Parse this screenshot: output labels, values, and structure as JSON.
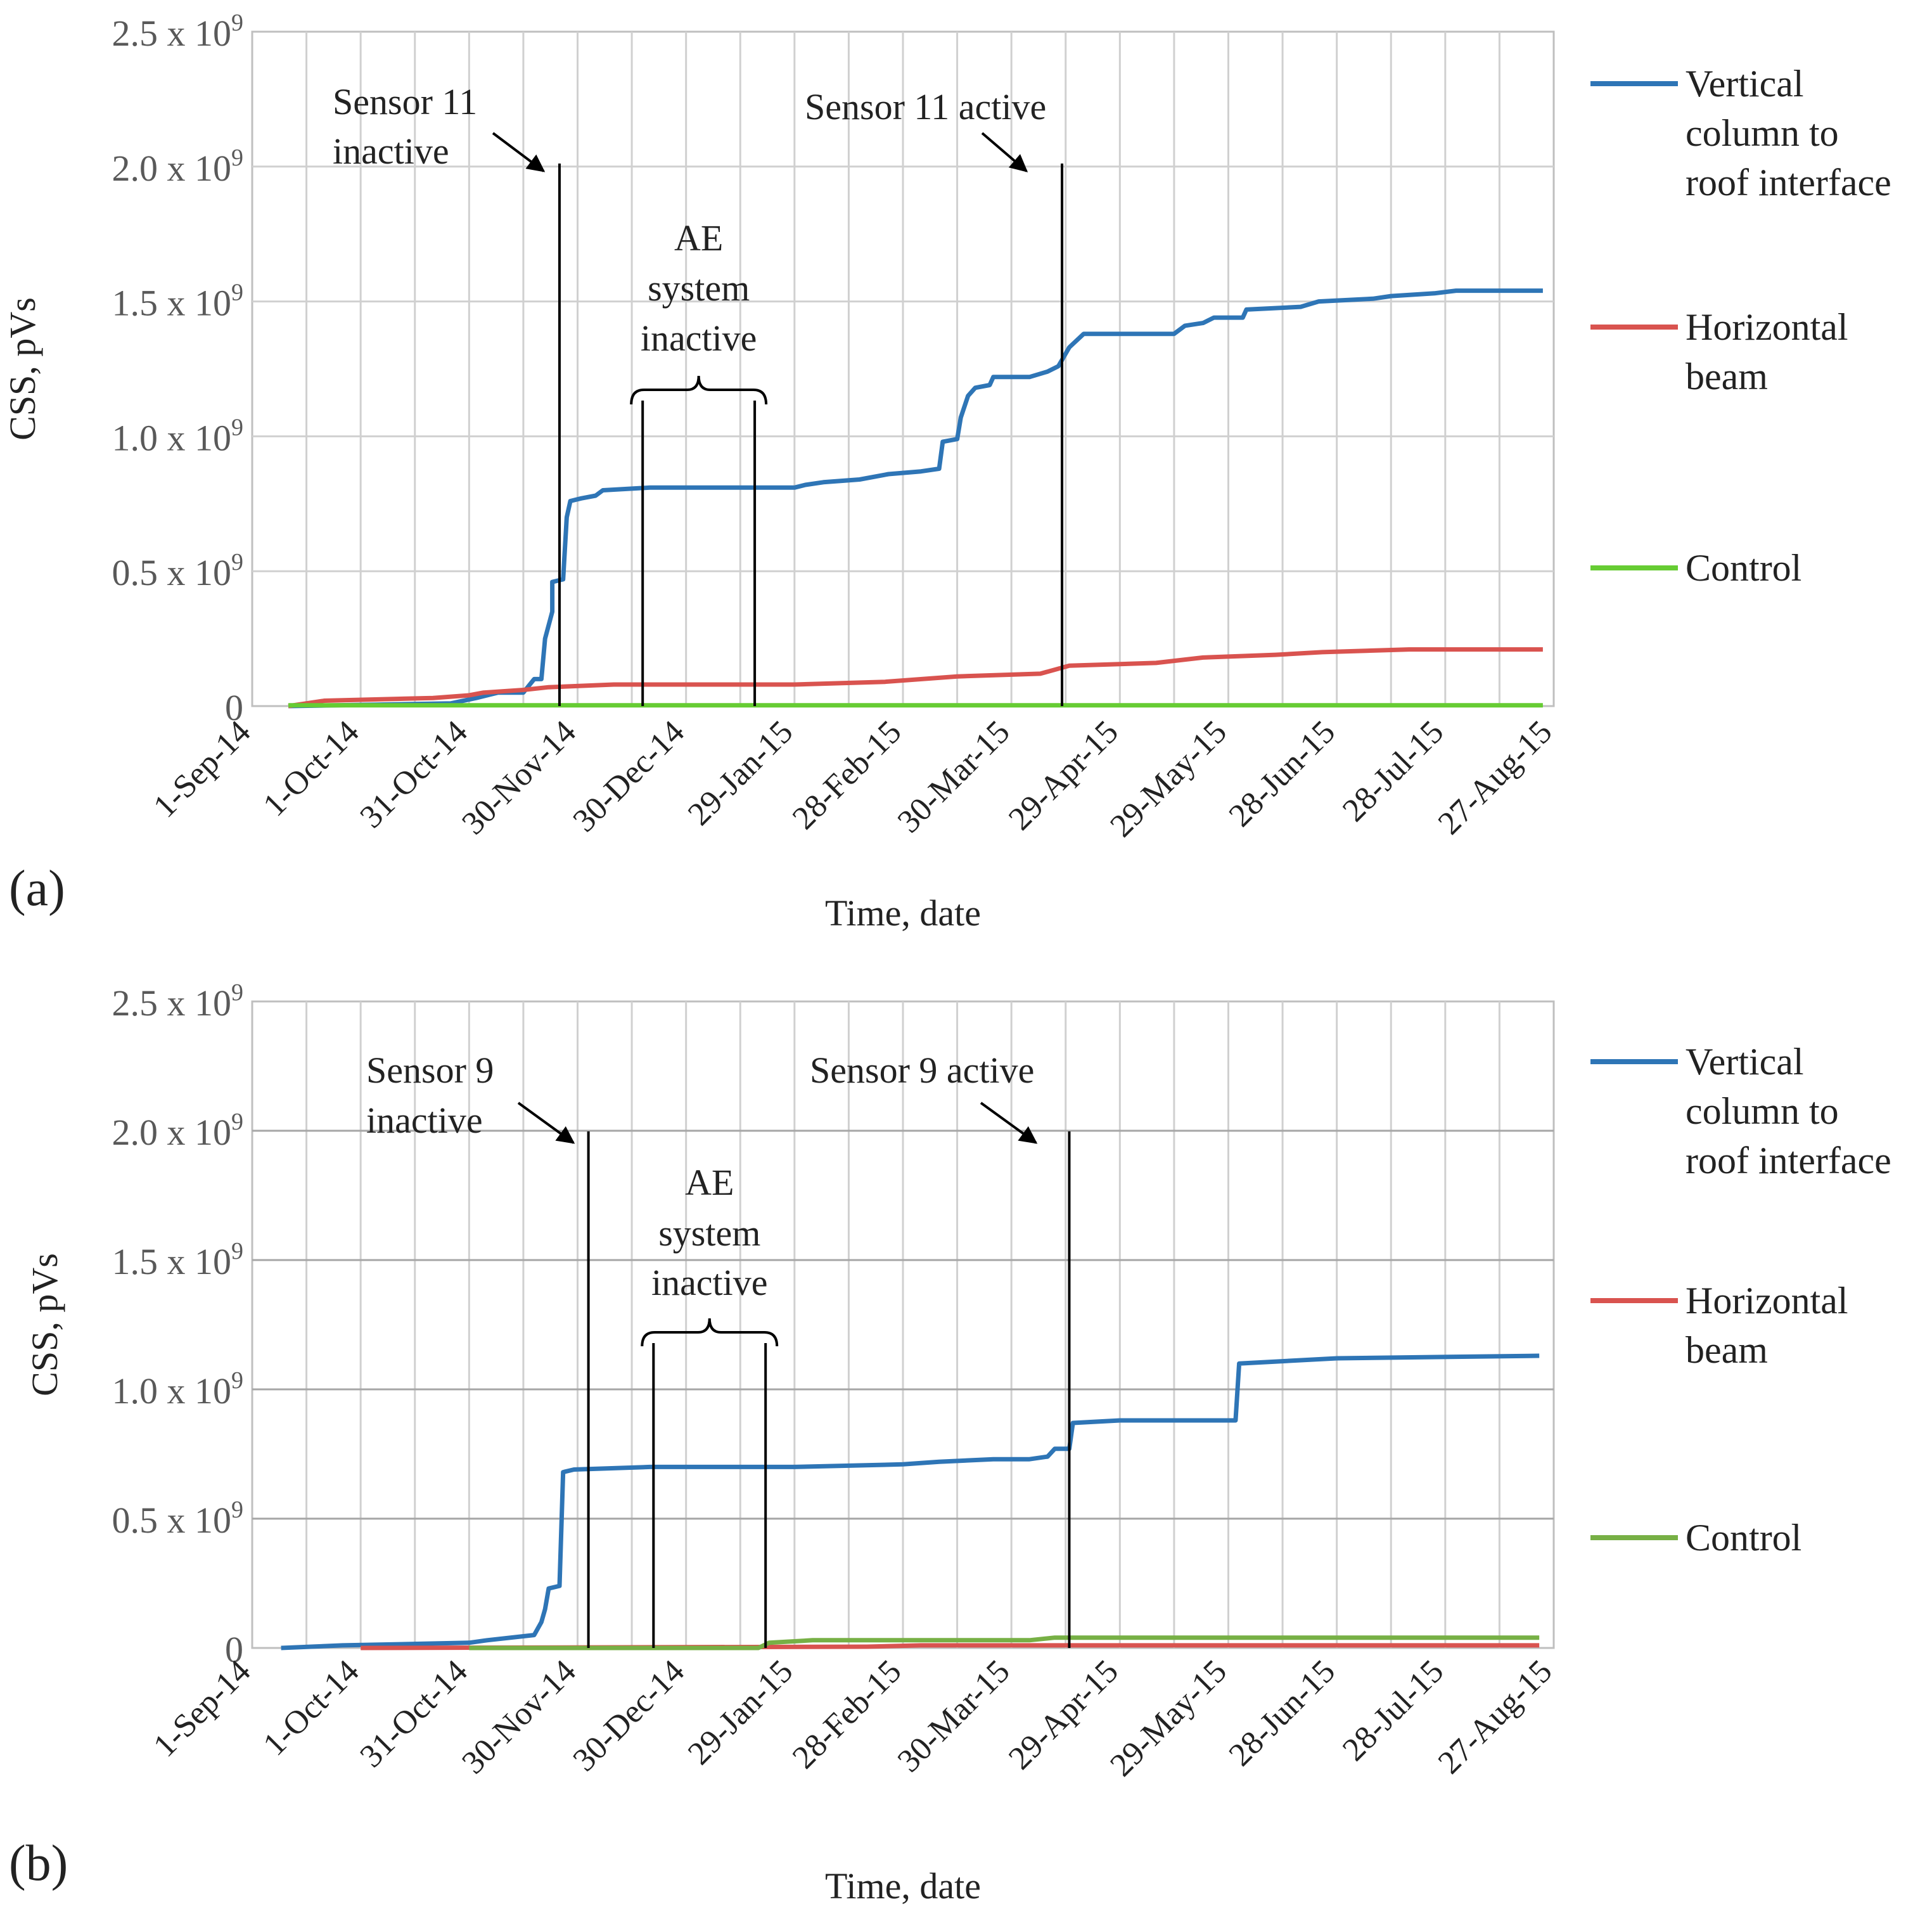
{
  "figure": {
    "panels": [
      "(a)",
      "(b)"
    ]
  },
  "colors": {
    "vertical": "#2E75B6",
    "horizontal": "#D9534F",
    "control_a": "#66CC33",
    "control_b": "#77B045",
    "grid": "#D0D0D0",
    "grid_major_b": "#A6A6A6",
    "annotation": "#000000"
  },
  "chart_data": [
    {
      "type": "line",
      "panel_label": "(a)",
      "xlabel": "Time, date",
      "ylabel": "CSS, pVs",
      "x_unit": "days since 1-Sep-14",
      "xlim": [
        0,
        360
      ],
      "ylim": [
        0,
        2.5
      ],
      "y_tick_labels": [
        {
          "value": 0,
          "label": "0",
          "sup": ""
        },
        {
          "value": 0.5,
          "label": "0.5 x 10",
          "sup": "9"
        },
        {
          "value": 1.0,
          "label": "1.0 x 10",
          "sup": "9"
        },
        {
          "value": 1.5,
          "label": "1.5 x 10",
          "sup": "9"
        },
        {
          "value": 2.0,
          "label": "2.0 x 10",
          "sup": "9"
        },
        {
          "value": 2.5,
          "label": "2.5 x 10",
          "sup": "9"
        }
      ],
      "x_ticks": [
        {
          "day": 0,
          "label": "1-Sep-14"
        },
        {
          "day": 30,
          "label": "1-Oct-14"
        },
        {
          "day": 60,
          "label": "31-Oct-14"
        },
        {
          "day": 90,
          "label": "30-Nov-14"
        },
        {
          "day": 120,
          "label": "30-Dec-14"
        },
        {
          "day": 150,
          "label": "29-Jan-15"
        },
        {
          "day": 180,
          "label": "28-Feb-15"
        },
        {
          "day": 210,
          "label": "30-Mar-15"
        },
        {
          "day": 240,
          "label": "29-Apr-15"
        },
        {
          "day": 270,
          "label": "29-May-15"
        },
        {
          "day": 300,
          "label": "28-Jun-15"
        },
        {
          "day": 330,
          "label": "28-Jul-15"
        },
        {
          "day": 360,
          "label": "27-Aug-15"
        }
      ],
      "y_scale_note": "values in units of 10^9 pVs",
      "series": [
        {
          "name": "Vertical column to roof interface",
          "color_key": "vertical",
          "points": [
            [
              10,
              0
            ],
            [
              55,
              0.01
            ],
            [
              62,
              0.03
            ],
            [
              68,
              0.05
            ],
            [
              75,
              0.05
            ],
            [
              78,
              0.1
            ],
            [
              80,
              0.1
            ],
            [
              81,
              0.25
            ],
            [
              83,
              0.35
            ],
            [
              83,
              0.46
            ],
            [
              86,
              0.47
            ],
            [
              87,
              0.7
            ],
            [
              88,
              0.76
            ],
            [
              91,
              0.77
            ],
            [
              95,
              0.78
            ],
            [
              97,
              0.8
            ],
            [
              110,
              0.81
            ],
            [
              150,
              0.81
            ],
            [
              153,
              0.82
            ],
            [
              158,
              0.83
            ],
            [
              168,
              0.84
            ],
            [
              176,
              0.86
            ],
            [
              185,
              0.87
            ],
            [
              190,
              0.88
            ],
            [
              191,
              0.98
            ],
            [
              195,
              0.99
            ],
            [
              196,
              1.07
            ],
            [
              198,
              1.15
            ],
            [
              200,
              1.18
            ],
            [
              204,
              1.19
            ],
            [
              205,
              1.22
            ],
            [
              215,
              1.22
            ],
            [
              220,
              1.24
            ],
            [
              223,
              1.26
            ],
            [
              226,
              1.33
            ],
            [
              230,
              1.38
            ],
            [
              255,
              1.38
            ],
            [
              258,
              1.41
            ],
            [
              263,
              1.42
            ],
            [
              266,
              1.44
            ],
            [
              274,
              1.44
            ],
            [
              275,
              1.47
            ],
            [
              290,
              1.48
            ],
            [
              295,
              1.5
            ],
            [
              310,
              1.51
            ],
            [
              315,
              1.52
            ],
            [
              327,
              1.53
            ],
            [
              333,
              1.54
            ],
            [
              357,
              1.54
            ]
          ]
        },
        {
          "name": "Horizontal beam",
          "color_key": "horizontal",
          "points": [
            [
              10,
              0
            ],
            [
              20,
              0.02
            ],
            [
              50,
              0.03
            ],
            [
              60,
              0.04
            ],
            [
              64,
              0.05
            ],
            [
              75,
              0.06
            ],
            [
              82,
              0.07
            ],
            [
              100,
              0.08
            ],
            [
              150,
              0.08
            ],
            [
              175,
              0.09
            ],
            [
              195,
              0.11
            ],
            [
              218,
              0.12
            ],
            [
              226,
              0.15
            ],
            [
              250,
              0.16
            ],
            [
              263,
              0.18
            ],
            [
              283,
              0.19
            ],
            [
              296,
              0.2
            ],
            [
              320,
              0.21
            ],
            [
              357,
              0.21
            ]
          ]
        },
        {
          "name": "Control",
          "color_key": "control_a",
          "points": [
            [
              10,
              0.003
            ],
            [
              357,
              0.003
            ]
          ]
        }
      ],
      "annotations": [
        {
          "text_lines": [
            "Sensor 11",
            "inactive"
          ],
          "day": 85,
          "kind": "marker"
        },
        {
          "text_lines": [
            "Sensor 11 active"
          ],
          "day": 224,
          "kind": "marker"
        },
        {
          "text_lines": [
            "AE",
            "system",
            "inactive"
          ],
          "start_day": 108,
          "end_day": 139,
          "kind": "bracket"
        }
      ],
      "legend": {
        "position": "right"
      }
    },
    {
      "type": "line",
      "panel_label": "(b)",
      "xlabel": "Time, date",
      "ylabel": "CSS, pVs",
      "x_unit": "days since 1-Sep-14",
      "xlim": [
        0,
        360
      ],
      "ylim": [
        0,
        2.5
      ],
      "y_tick_labels": [
        {
          "value": 0,
          "label": "0",
          "sup": ""
        },
        {
          "value": 0.5,
          "label": "0.5 x 10",
          "sup": "9"
        },
        {
          "value": 1.0,
          "label": "1.0 x 10",
          "sup": "9"
        },
        {
          "value": 1.5,
          "label": "1.5 x 10",
          "sup": "9"
        },
        {
          "value": 2.0,
          "label": "2.0 x 10",
          "sup": "9"
        },
        {
          "value": 2.5,
          "label": "2.5 x 10",
          "sup": "9"
        }
      ],
      "x_ticks": [
        {
          "day": 0,
          "label": "1-Sep-14"
        },
        {
          "day": 30,
          "label": "1-Oct-14"
        },
        {
          "day": 60,
          "label": "31-Oct-14"
        },
        {
          "day": 90,
          "label": "30-Nov-14"
        },
        {
          "day": 120,
          "label": "30-Dec-14"
        },
        {
          "day": 150,
          "label": "29-Jan-15"
        },
        {
          "day": 180,
          "label": "28-Feb-15"
        },
        {
          "day": 210,
          "label": "30-Mar-15"
        },
        {
          "day": 240,
          "label": "29-Apr-15"
        },
        {
          "day": 270,
          "label": "29-May-15"
        },
        {
          "day": 300,
          "label": "28-Jun-15"
        },
        {
          "day": 330,
          "label": "28-Jul-15"
        },
        {
          "day": 360,
          "label": "27-Aug-15"
        }
      ],
      "y_scale_note": "values in units of 10^9 pVs",
      "series": [
        {
          "name": "Vertical column to roof interface",
          "color_key": "vertical",
          "points": [
            [
              8,
              0
            ],
            [
              25,
              0.01
            ],
            [
              60,
              0.02
            ],
            [
              65,
              0.03
            ],
            [
              78,
              0.05
            ],
            [
              80,
              0.1
            ],
            [
              81,
              0.15
            ],
            [
              82,
              0.23
            ],
            [
              85,
              0.24
            ],
            [
              86,
              0.68
            ],
            [
              89,
              0.69
            ],
            [
              110,
              0.7
            ],
            [
              150,
              0.7
            ],
            [
              180,
              0.71
            ],
            [
              190,
              0.72
            ],
            [
              205,
              0.73
            ],
            [
              215,
              0.73
            ],
            [
              220,
              0.74
            ],
            [
              222,
              0.77
            ],
            [
              226,
              0.77
            ],
            [
              227,
              0.87
            ],
            [
              240,
              0.88
            ],
            [
              272,
              0.88
            ],
            [
              273,
              1.1
            ],
            [
              300,
              1.12
            ],
            [
              356,
              1.13
            ]
          ]
        },
        {
          "name": "Horizontal beam",
          "color_key": "horizontal",
          "points": [
            [
              30,
              0
            ],
            [
              170,
              0.005
            ],
            [
              185,
              0.01
            ],
            [
              356,
              0.01
            ]
          ]
        },
        {
          "name": "Control",
          "color_key": "control_b",
          "points": [
            [
              60,
              0
            ],
            [
              140,
              0
            ],
            [
              143,
              0.02
            ],
            [
              155,
              0.03
            ],
            [
              215,
              0.03
            ],
            [
              222,
              0.04
            ],
            [
              356,
              0.04
            ]
          ]
        }
      ],
      "annotations": [
        {
          "text_lines": [
            "Sensor 9",
            "inactive"
          ],
          "day": 93,
          "kind": "marker"
        },
        {
          "text_lines": [
            "Sensor 9 active"
          ],
          "day": 226,
          "kind": "marker"
        },
        {
          "text_lines": [
            "AE",
            "system",
            "inactive"
          ],
          "start_day": 111,
          "end_day": 142,
          "kind": "bracket"
        }
      ],
      "legend": {
        "position": "right"
      }
    }
  ]
}
